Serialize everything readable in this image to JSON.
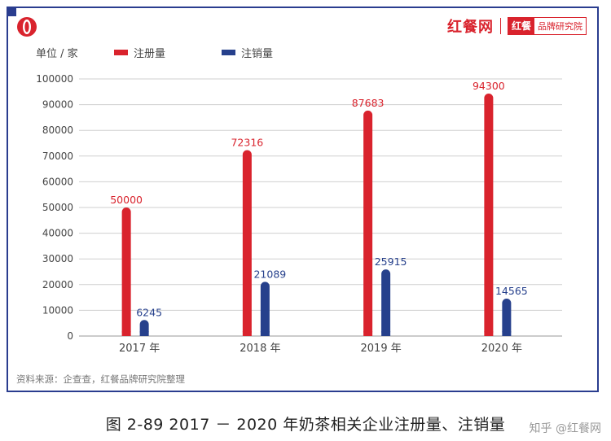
{
  "brand": {
    "name": "红餐网",
    "box_red": "红餐",
    "box_text": "品牌研究院"
  },
  "colors": {
    "frame": "#2a3d8f",
    "registered": "#d9232d",
    "cancelled": "#26408c",
    "grid": "#cfcfcf"
  },
  "chart_data": {
    "type": "bar",
    "unit_label": "单位 / 家",
    "categories": [
      "2017 年",
      "2018 年",
      "2019 年",
      "2020 年"
    ],
    "series": [
      {
        "name": "注册量",
        "color": "#d9232d",
        "values": [
          50000,
          72316,
          87683,
          94300
        ]
      },
      {
        "name": "注销量",
        "color": "#26408c",
        "values": [
          6245,
          21089,
          25915,
          14565
        ]
      }
    ],
    "ylim": [
      0,
      100000
    ],
    "yticks": [
      0,
      10000,
      20000,
      30000,
      40000,
      50000,
      60000,
      70000,
      80000,
      90000,
      100000
    ],
    "grid": true,
    "legend": "top-left",
    "data_labels": true
  },
  "source_note": "资料来源：企查查，红餐品牌研究院整理",
  "caption": "图 2-89     2017 － 2020 年奶茶相关企业注册量、注销量",
  "watermark": "知乎 @红餐网"
}
